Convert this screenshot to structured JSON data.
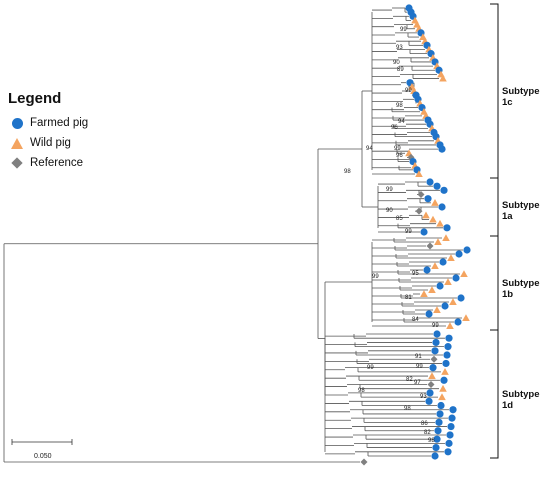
{
  "legend": {
    "title": "Legend",
    "items": [
      {
        "label": "Farmed pig",
        "symbol": "circle",
        "color": "#1f73c9"
      },
      {
        "label": "Wild pig",
        "symbol": "triangle",
        "color": "#f4a460"
      },
      {
        "label": "Reference",
        "symbol": "diamond",
        "color": "#808080"
      }
    ]
  },
  "subtypes": [
    "Subtype 1c",
    "Subtype 1a",
    "Subtype 1b",
    "Subtype 1d"
  ],
  "bootstrap_values": [
    "99",
    "93",
    "90",
    "89",
    "99",
    "98",
    "94",
    "96",
    "99",
    "96",
    "94",
    "98",
    "99",
    "90",
    "85",
    "99",
    "99",
    "95",
    "81",
    "84",
    "99",
    "91",
    "99",
    "82",
    "97",
    "93",
    "98",
    "86",
    "82",
    "98",
    "99",
    "98"
  ],
  "scale_bar": {
    "label": "0.050"
  },
  "colors": {
    "farmed": "#1f73c9",
    "wild": "#f4a460",
    "reference": "#808080",
    "line": "#555555"
  }
}
